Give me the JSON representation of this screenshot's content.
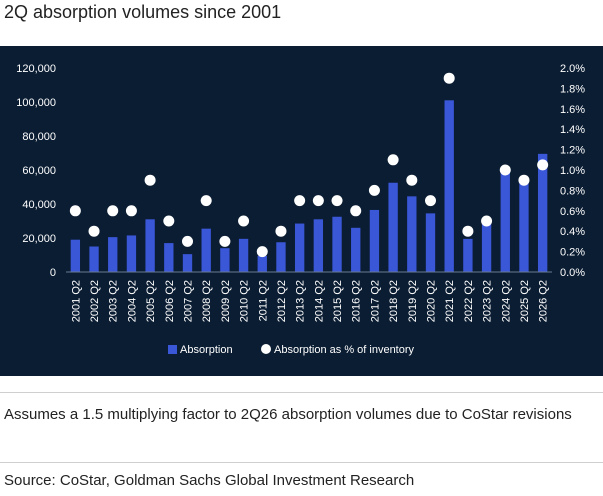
{
  "title": "2Q absorption volumes since 2001",
  "note": "Assumes a 1.5 multiplying factor to 2Q26 absorption volumes due to CoStar revisions",
  "source": "Source: CoStar, Goldman Sachs Global Investment Research",
  "colors": {
    "panel_bg": "#0b1d33",
    "bar": "#3a57d8",
    "dot": "#ffffff",
    "text": "#ffffff"
  },
  "chart_data": {
    "type": "bar",
    "categories": [
      "2001 Q2",
      "2002 Q2",
      "2003 Q2",
      "2004 Q2",
      "2005 Q2",
      "2006 Q2",
      "2007 Q2",
      "2008 Q2",
      "2009 Q2",
      "2010 Q2",
      "2011 Q2",
      "2012 Q2",
      "2013 Q2",
      "2014 Q2",
      "2015 Q2",
      "2016 Q2",
      "2017 Q2",
      "2018 Q2",
      "2019 Q2",
      "2020 Q2",
      "2021 Q2",
      "2022 Q2",
      "2023 Q2",
      "2024 Q2",
      "2025 Q2",
      "2026 Q2"
    ],
    "series": [
      {
        "name": "Absorption",
        "kind": "bar",
        "axis": "left",
        "values": [
          19000,
          15000,
          20500,
          21500,
          31000,
          17000,
          10500,
          25500,
          14000,
          19500,
          9500,
          17500,
          28500,
          31000,
          32500,
          26000,
          36500,
          52500,
          44500,
          34500,
          101000,
          19500,
          28500,
          59500,
          54500,
          69500
        ]
      },
      {
        "name": "Absorption as % of inventory",
        "kind": "dot",
        "axis": "right",
        "values": [
          0.6,
          0.4,
          0.6,
          0.6,
          0.9,
          0.5,
          0.3,
          0.7,
          0.3,
          0.5,
          0.2,
          0.4,
          0.7,
          0.7,
          0.7,
          0.6,
          0.8,
          1.1,
          0.9,
          0.7,
          1.9,
          0.4,
          0.5,
          1.0,
          0.9,
          1.05
        ]
      }
    ],
    "y_left": {
      "min": 0,
      "max": 120000,
      "ticks": [
        "0",
        "20,000",
        "40,000",
        "60,000",
        "80,000",
        "100,000",
        "120,000"
      ]
    },
    "y_right": {
      "min": 0,
      "max": 2.0,
      "ticks": [
        "0.0%",
        "0.2%",
        "0.4%",
        "0.6%",
        "0.8%",
        "1.0%",
        "1.2%",
        "1.4%",
        "1.6%",
        "1.8%",
        "2.0%"
      ]
    },
    "legend_position": "bottom",
    "grid": false
  }
}
